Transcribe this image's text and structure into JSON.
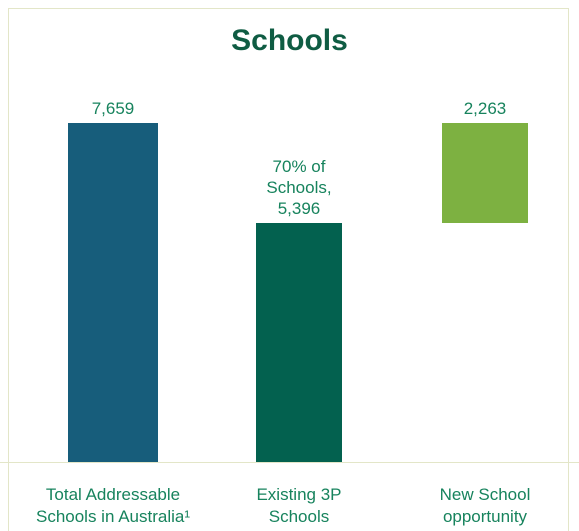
{
  "chart_data": {
    "type": "waterfall",
    "title": "Schools",
    "categories": [
      "Total Addressable Schools in Australia¹",
      "Existing 3P Schools",
      "New School opportunity"
    ],
    "values": [
      7659,
      5396,
      2263
    ],
    "value_labels": [
      "7,659",
      "70% of Schools, 5,396",
      "2,263"
    ],
    "colors": [
      "#175d7b",
      "#03614f",
      "#7db141"
    ],
    "ylim": [
      0,
      8000
    ]
  }
}
